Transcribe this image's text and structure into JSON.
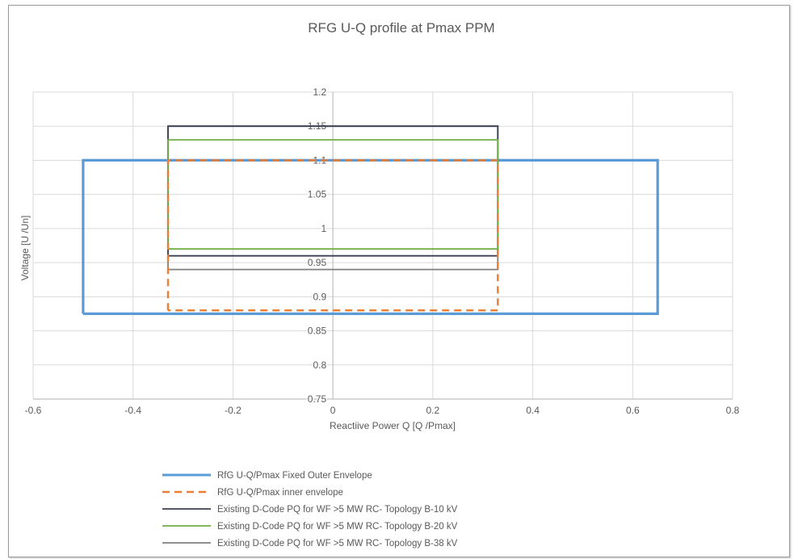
{
  "chart_data": {
    "type": "line",
    "title": "RFG U-Q profile at Pmax PPM",
    "xlabel": "Reactiive Power Q [Q /Pmax]",
    "ylabel": "Voltage [U /Un]",
    "xlim": [
      -0.6,
      0.8
    ],
    "ylim": [
      0.75,
      1.2
    ],
    "xticks": [
      "-0.6",
      "-0.4",
      "-0.2",
      "0",
      "0.2",
      "0.4",
      "0.6",
      "0.8"
    ],
    "yticks": [
      "0.75",
      "0.8",
      "0.85",
      "0.9",
      "0.95",
      "1",
      "1.05",
      "1.1",
      "1.15",
      "1.2"
    ],
    "grid": true,
    "legend_position": "bottom",
    "series": [
      {
        "name": "RfG U-Q/Pmax Fixed Outer Envelope",
        "color": "#5B9BD5",
        "style": "solid",
        "x": [
          -0.5,
          -0.5,
          0.65,
          0.65,
          -0.5
        ],
        "y": [
          0.875,
          1.1,
          1.1,
          0.875,
          0.875
        ]
      },
      {
        "name": "RfG U-Q/Pmax inner envelope",
        "color": "#ED7D31",
        "style": "dashed",
        "x": [
          -0.33,
          -0.33,
          0.33,
          0.33,
          -0.33
        ],
        "y": [
          0.88,
          1.1,
          1.1,
          0.88,
          0.88
        ]
      },
      {
        "name": "Existing D-Code PQ for WF >5 MW RC- Topology B-10 kV",
        "color": "#3b3f52",
        "style": "solid",
        "x": [
          -0.33,
          -0.33,
          0.33,
          0.33,
          -0.33
        ],
        "y": [
          0.96,
          1.15,
          1.15,
          0.96,
          0.96
        ]
      },
      {
        "name": "Existing D-Code PQ for WF >5 MW RC- Topology B-20 kV",
        "color": "#70AD47",
        "style": "solid",
        "x": [
          -0.33,
          -0.33,
          0.33,
          0.33,
          -0.33
        ],
        "y": [
          0.97,
          1.13,
          1.13,
          0.97,
          0.97
        ]
      },
      {
        "name": "Existing D-Code PQ for WF >5 MW RC- Topology B-38 kV",
        "color": "#7f7f7f",
        "style": "solid",
        "x": [
          -0.33,
          -0.33,
          0.33,
          0.33,
          -0.33
        ],
        "y": [
          0.94,
          1.15,
          1.15,
          0.94,
          0.94
        ]
      }
    ]
  }
}
